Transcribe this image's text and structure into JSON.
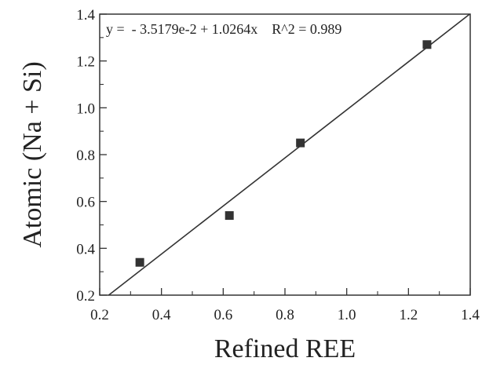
{
  "chart_data": {
    "type": "scatter",
    "title": "",
    "xlabel": "Refined REE",
    "ylabel": "Atomic (Na + Si)",
    "xlim": [
      0.2,
      1.4
    ],
    "ylim": [
      0.2,
      1.4
    ],
    "x_ticks": [
      "0.2",
      "0.4",
      "0.6",
      "0.8",
      "1.0",
      "1.2",
      "1.4"
    ],
    "y_ticks": [
      "0.2",
      "0.4",
      "0.6",
      "0.8",
      "1.0",
      "1.2",
      "1.4"
    ],
    "grid": false,
    "legend": "none",
    "marker": "square",
    "color": "#333333",
    "points": [
      {
        "x": 0.33,
        "y": 0.34
      },
      {
        "x": 0.62,
        "y": 0.54
      },
      {
        "x": 0.85,
        "y": 0.85
      },
      {
        "x": 1.26,
        "y": 1.27
      }
    ],
    "fit": {
      "intercept": -0.035179,
      "slope": 1.0264,
      "r2": 0.989
    },
    "annotation": "y =  - 3.5179e-2 + 1.0264x    R^2 = 0.989"
  }
}
